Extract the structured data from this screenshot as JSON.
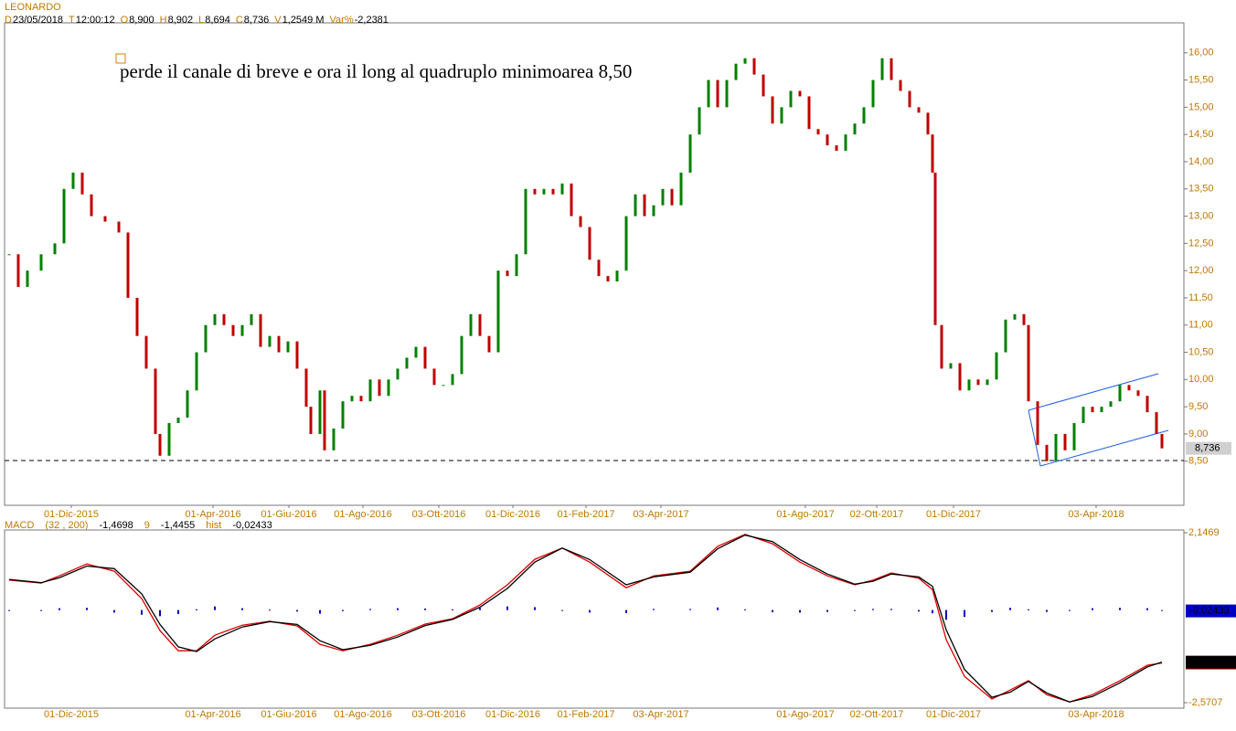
{
  "header": {
    "name": "LEONARDO",
    "fields": [
      {
        "key": "D",
        "value": "23/05/2018"
      },
      {
        "key": "T",
        "value": "12:00:12"
      },
      {
        "key": "O",
        "value": "8,900"
      },
      {
        "key": "H",
        "value": "8,902"
      },
      {
        "key": "L",
        "value": "8,694"
      },
      {
        "key": "C",
        "value": "8,736"
      },
      {
        "key": "V",
        "value": "1,2549 M"
      },
      {
        "key": "Var%",
        "value": "-2,2381"
      }
    ]
  },
  "chart_data": [
    {
      "type": "candlestick",
      "annotation": "perde il canale di breve e ora il long al quadruplo minimoarea 8,50",
      "x": [
        5,
        15,
        25,
        40,
        55,
        65,
        75,
        85,
        95,
        110,
        125,
        135,
        145,
        155,
        165,
        170,
        180,
        190,
        200,
        210,
        220,
        230,
        240,
        250,
        260,
        270,
        280,
        290,
        300,
        310,
        320,
        330,
        335,
        345,
        350,
        360,
        370,
        380,
        390,
        400,
        410,
        420,
        430,
        440,
        450,
        460,
        470,
        480,
        490,
        500,
        510,
        520,
        530,
        540,
        550,
        560,
        570,
        580,
        590,
        600,
        610,
        620,
        630,
        640,
        650,
        660,
        670,
        680,
        690,
        700,
        710,
        720,
        730,
        740,
        750,
        760,
        770,
        780,
        790,
        800,
        810,
        820,
        830,
        840,
        850,
        860,
        870,
        880,
        890,
        900,
        910,
        920,
        930,
        940,
        950,
        960,
        970,
        980,
        990,
        1000,
        1010,
        1015,
        1018,
        1025,
        1035,
        1045,
        1055,
        1065,
        1075,
        1085,
        1095,
        1105,
        1115,
        1120,
        1130,
        1140,
        1150,
        1160,
        1170,
        1180,
        1190,
        1200,
        1210,
        1220,
        1230,
        1240,
        1250,
        1260,
        1266
      ],
      "values": [
        12.3,
        11.7,
        12.0,
        12.3,
        12.5,
        13.5,
        13.8,
        13.4,
        13.0,
        12.9,
        12.7,
        11.5,
        10.8,
        10.2,
        9.0,
        8.6,
        9.2,
        9.3,
        9.8,
        10.5,
        11.0,
        11.2,
        11.0,
        10.8,
        11.0,
        11.2,
        10.6,
        10.8,
        10.5,
        10.7,
        10.2,
        9.5,
        9.0,
        9.8,
        8.7,
        9.1,
        9.6,
        9.7,
        9.6,
        10.0,
        9.7,
        10.0,
        10.2,
        10.4,
        10.6,
        10.2,
        9.9,
        9.9,
        10.1,
        10.8,
        11.2,
        10.8,
        10.5,
        12.0,
        11.9,
        12.3,
        13.5,
        13.4,
        13.5,
        13.4,
        13.6,
        13.0,
        12.8,
        12.2,
        11.9,
        11.8,
        12.0,
        13.0,
        13.4,
        13.0,
        13.2,
        13.5,
        13.2,
        13.8,
        14.5,
        15.0,
        15.5,
        15.0,
        15.5,
        15.8,
        15.9,
        15.6,
        15.2,
        14.7,
        15.0,
        15.3,
        15.2,
        14.6,
        14.5,
        14.3,
        14.2,
        14.5,
        14.7,
        15.0,
        15.5,
        15.9,
        15.5,
        15.3,
        15.0,
        14.9,
        14.5,
        13.8,
        11.0,
        10.2,
        10.3,
        9.8,
        10.0,
        9.9,
        10.0,
        10.5,
        11.1,
        11.2,
        11.0,
        9.6,
        8.8,
        8.5,
        9.0,
        8.7,
        9.2,
        9.5,
        9.4,
        9.5,
        9.6,
        9.9,
        9.8,
        9.7,
        9.4,
        9.0,
        8.736
      ],
      "value_labels": {
        "last": "8,736"
      },
      "up_color": "#008000",
      "down_color": "#c00000",
      "xlim": [
        0,
        1290
      ],
      "ylim": [
        7.69,
        16.55
      ],
      "xticks": [
        {
          "value": 73,
          "label": "01-Dic-2015"
        },
        {
          "value": 228,
          "label": "01-Apr-2016"
        },
        {
          "value": 311,
          "label": "01-Giu-2016"
        },
        {
          "value": 392,
          "label": "01-Ago-2016"
        },
        {
          "value": 475,
          "label": "03-Ott-2016"
        },
        {
          "value": 556,
          "label": "01-Dic-2016"
        },
        {
          "value": 636,
          "label": "01-Feb-2017"
        },
        {
          "value": 718,
          "label": "03-Apr-2017"
        },
        {
          "value": 876,
          "label": "01-Ago-2017"
        },
        {
          "value": 954,
          "label": "02-Ott-2017"
        },
        {
          "value": 1038,
          "label": "01-Dic-2017"
        },
        {
          "value": 1194,
          "label": "03-Apr-2018"
        }
      ],
      "yticks": [
        {
          "value": 8.5,
          "label": "8,50"
        },
        {
          "value": 9,
          "label": "9,00"
        },
        {
          "value": 9.5,
          "label": "9,50"
        },
        {
          "value": 10,
          "label": "10,00"
        },
        {
          "value": 10.5,
          "label": "10,50"
        },
        {
          "value": 11,
          "label": "11,00"
        },
        {
          "value": 11.5,
          "label": "11,50"
        },
        {
          "value": 12,
          "label": "12,00"
        },
        {
          "value": 12.5,
          "label": "12,50"
        },
        {
          "value": 13,
          "label": "13,00"
        },
        {
          "value": 13.5,
          "label": "13,50"
        },
        {
          "value": 14,
          "label": "14,00"
        },
        {
          "value": 14.5,
          "label": "14,50"
        },
        {
          "value": 15,
          "label": "15,00"
        },
        {
          "value": 15.5,
          "label": "15,50"
        },
        {
          "value": 16,
          "label": "16,00"
        }
      ]
    },
    {
      "type": "macd",
      "title": "MACD",
      "x": [
        5,
        40,
        60,
        90,
        120,
        150,
        170,
        190,
        210,
        230,
        260,
        290,
        320,
        345,
        370,
        400,
        430,
        460,
        490,
        520,
        550,
        580,
        610,
        640,
        680,
        710,
        750,
        780,
        810,
        840,
        870,
        900,
        930,
        950,
        970,
        1000,
        1015,
        1030,
        1050,
        1080,
        1100,
        1120,
        1140,
        1165,
        1190,
        1220,
        1250,
        1266
      ],
      "series": [
        {
          "name": "(32 , 200)",
          "color": "#e00000",
          "value_label": "-1,4698",
          "values": [
            0.83,
            0.75,
            0.95,
            1.28,
            1.08,
            0.32,
            -0.57,
            -1.13,
            -1.13,
            -0.7,
            -0.42,
            -0.31,
            -0.44,
            -0.95,
            -1.13,
            -0.95,
            -0.7,
            -0.39,
            -0.24,
            0.14,
            0.7,
            1.41,
            1.72,
            1.33,
            0.62,
            0.95,
            1.08,
            1.77,
            2.1,
            1.84,
            1.33,
            0.95,
            0.7,
            0.83,
            1.03,
            0.88,
            0.57,
            -0.82,
            -1.84,
            -2.47,
            -2.22,
            -1.96,
            -2.35,
            -2.55,
            -2.35,
            -1.96,
            -1.53,
            -1.4698
          ]
        },
        {
          "name": "9",
          "color": "#000000",
          "value_label": "-1,4455",
          "values": [
            0.85,
            0.76,
            0.9,
            1.22,
            1.15,
            0.45,
            -0.4,
            -1.02,
            -1.15,
            -0.8,
            -0.47,
            -0.32,
            -0.4,
            -0.85,
            -1.1,
            -0.98,
            -0.75,
            -0.43,
            -0.26,
            0.08,
            0.6,
            1.33,
            1.72,
            1.4,
            0.7,
            0.92,
            1.05,
            1.7,
            2.08,
            1.9,
            1.4,
            1.0,
            0.72,
            0.8,
            1.0,
            0.92,
            0.66,
            -0.55,
            -1.65,
            -2.42,
            -2.28,
            -1.98,
            -2.3,
            -2.55,
            -2.4,
            -2.02,
            -1.58,
            -1.4455
          ]
        },
        {
          "name": "hist",
          "color": "#0000c0",
          "value_label": "-0,02433",
          "values": [
            -0.02,
            -0.01,
            0.05,
            0.06,
            -0.07,
            -0.13,
            -0.17,
            -0.11,
            0.02,
            0.1,
            0.05,
            0.01,
            -0.04,
            -0.1,
            -0.03,
            0.03,
            0.05,
            0.04,
            0.02,
            0.06,
            0.1,
            0.08,
            0,
            -0.07,
            -0.08,
            0.03,
            0.03,
            0.07,
            0.02,
            -0.06,
            -0.07,
            -0.05,
            -0.02,
            0.03,
            0.03,
            -0.04,
            -0.09,
            -0.27,
            -0.19,
            -0.05,
            0.06,
            0.02,
            -0.05,
            0,
            0.05,
            0.06,
            0.05,
            -0.02433
          ]
        }
      ],
      "ylim": [
        -2.5707,
        2.1469
      ],
      "yticks": [
        {
          "value": -2.5707,
          "label": "-2,5707"
        },
        {
          "value": 2.1469,
          "label": "2,1469"
        }
      ]
    }
  ]
}
